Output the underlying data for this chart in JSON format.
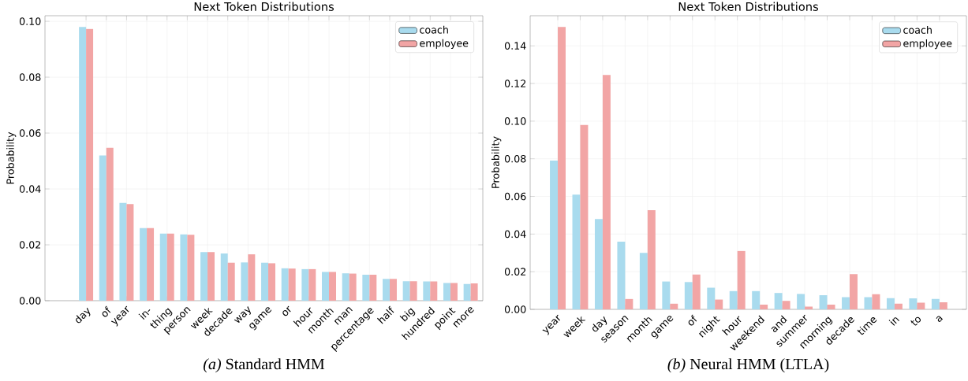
{
  "chart_data": [
    {
      "type": "bar",
      "title": "Next Token Distributions",
      "ylabel": "Probability",
      "annotations": [
        "*(a)* Standard HMM"
      ],
      "categories": [
        "day",
        "of",
        "year",
        "in-",
        "thing",
        "person",
        "week",
        "decade",
        "way",
        "game",
        "or",
        "hour",
        "month",
        "man",
        "percentage",
        "half",
        "big",
        "hundred",
        "point",
        "more"
      ],
      "series": [
        {
          "name": "coach",
          "color": "#a9dbee",
          "values": [
            0.098,
            0.052,
            0.035,
            0.026,
            0.024,
            0.0237,
            0.0174,
            0.0169,
            0.0137,
            0.0136,
            0.0116,
            0.0113,
            0.0103,
            0.0098,
            0.0093,
            0.0078,
            0.007,
            0.0069,
            0.0063,
            0.006
          ]
        },
        {
          "name": "employee",
          "color": "#f2a5a5",
          "values": [
            0.0973,
            0.0547,
            0.0346,
            0.026,
            0.024,
            0.0236,
            0.0174,
            0.0136,
            0.0166,
            0.0134,
            0.0115,
            0.0113,
            0.0103,
            0.0097,
            0.0093,
            0.0078,
            0.007,
            0.0069,
            0.0063,
            0.0062
          ]
        }
      ],
      "ylim": [
        0,
        0.102
      ],
      "yticks": [
        {
          "value": 0,
          "label": "0.00"
        },
        {
          "value": 0.02,
          "label": "0.02"
        },
        {
          "value": 0.04,
          "label": "0.04"
        },
        {
          "value": 0.06,
          "label": "0.06"
        },
        {
          "value": 0.08,
          "label": "0.08"
        },
        {
          "value": 0.1,
          "label": "0.10"
        }
      ],
      "grid": true,
      "legend": "top right"
    },
    {
      "type": "bar",
      "title": "Next Token Distributions",
      "ylabel": "Probability",
      "annotations": [
        "*(b)* Neural HMM (LTLA)"
      ],
      "categories": [
        "year",
        "week",
        "day",
        "season",
        "month",
        "game",
        "of",
        "night",
        "hour",
        "weekend",
        "and",
        "summer",
        "morning",
        "decade",
        "time",
        "in",
        "to",
        "a"
      ],
      "series": [
        {
          "name": "coach",
          "color": "#a9dbee",
          "values": [
            0.079,
            0.061,
            0.048,
            0.036,
            0.03,
            0.0148,
            0.0145,
            0.0115,
            0.0097,
            0.0097,
            0.0087,
            0.0082,
            0.0075,
            0.0065,
            0.0065,
            0.006,
            0.0058,
            0.0055
          ]
        },
        {
          "name": "employee",
          "color": "#f2a5a5",
          "values": [
            0.15,
            0.098,
            0.1245,
            0.0055,
            0.0527,
            0.003,
            0.0185,
            0.0052,
            0.031,
            0.0025,
            0.0045,
            0.0015,
            0.0025,
            0.0187,
            0.008,
            0.003,
            0.0035,
            0.0038
          ]
        }
      ],
      "ylim": [
        0,
        0.156
      ],
      "yticks": [
        {
          "value": 0,
          "label": "0.00"
        },
        {
          "value": 0.02,
          "label": "0.02"
        },
        {
          "value": 0.04,
          "label": "0.04"
        },
        {
          "value": 0.06,
          "label": "0.06"
        },
        {
          "value": 0.08,
          "label": "0.08"
        },
        {
          "value": 0.1,
          "label": "0.10"
        },
        {
          "value": 0.12,
          "label": "0.12"
        },
        {
          "value": 0.14,
          "label": "0.14"
        }
      ],
      "grid": true,
      "legend": "top right"
    }
  ]
}
